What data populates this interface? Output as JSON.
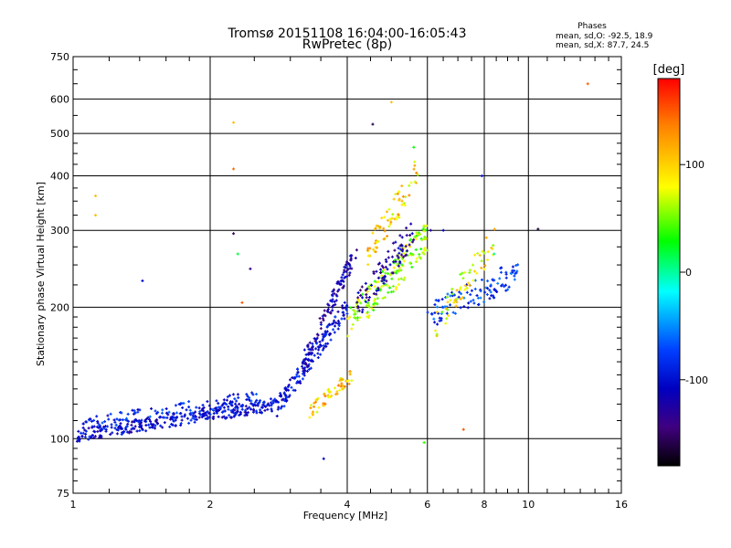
{
  "chart_data": {
    "type": "scatter",
    "title": "Tromsø 20151108 16:04:00-16:05:43",
    "subtitle": "RwPretec (8p)",
    "xlabel": "Frequency [MHz]",
    "ylabel": "Stationary phase Virtual Height [km]",
    "x_scale": "log",
    "y_scale": "log",
    "xlim": [
      1,
      16
    ],
    "ylim": [
      75,
      750
    ],
    "x_ticks": [
      1,
      2,
      4,
      6,
      8,
      10,
      16
    ],
    "y_ticks": [
      75,
      100,
      200,
      300,
      400,
      500,
      600,
      750
    ],
    "grid": true,
    "phase_info": {
      "heading": "Phases",
      "line1": "mean, sd,O: -92.5, 18.9",
      "line2": "mean, sd,X:  87.7, 24.5"
    },
    "colorbar": {
      "label": "[deg]",
      "range": [
        -180,
        180
      ],
      "ticks": [
        100,
        0,
        -100
      ],
      "colors": [
        "#ff0000",
        "#ff8000",
        "#ffff00",
        "#00ff00",
        "#00ffff",
        "#0040ff",
        "#0000c0",
        "#400080",
        "#000000"
      ]
    },
    "series": [
      {
        "type": "traces",
        "traces": [
          {
            "x": [
              1.02,
              2.8
            ],
            "y": [
              102,
              120
            ],
            "phase": -95,
            "n": 320,
            "jitter": 0.035
          },
          {
            "x": [
              1.05,
              2.6
            ],
            "y": [
              108,
              125
            ],
            "phase": -80,
            "n": 120,
            "jitter": 0.035
          },
          {
            "x": [
              2.8,
              4.0
            ],
            "y": [
              118,
              200
            ],
            "phase": -90,
            "n": 160,
            "jitter": 0.05
          },
          {
            "x": [
              3.2,
              4.2
            ],
            "y": [
              150,
              270
            ],
            "phase": -115,
            "n": 110,
            "jitter": 0.05
          },
          {
            "x": [
              3.3,
              4.1
            ],
            "y": [
              115,
              140
            ],
            "phase": 95,
            "n": 60,
            "jitter": 0.035
          },
          {
            "x": [
              4.0,
              6.0
            ],
            "y": [
              180,
              290
            ],
            "phase": 60,
            "n": 170,
            "jitter": 0.09
          },
          {
            "x": [
              4.2,
              5.6
            ],
            "y": [
              200,
              300
            ],
            "phase": -120,
            "n": 90,
            "jitter": 0.08
          },
          {
            "x": [
              4.4,
              5.8
            ],
            "y": [
              260,
              420
            ],
            "phase": 90,
            "n": 70,
            "jitter": 0.08
          },
          {
            "x": [
              6.0,
              9.5
            ],
            "y": [
              190,
              240
            ],
            "phase": -70,
            "n": 110,
            "jitter": 0.07
          },
          {
            "x": [
              6.2,
              8.5
            ],
            "y": [
              180,
              290
            ],
            "phase": 80,
            "n": 60,
            "jitter": 0.08
          }
        ]
      },
      {
        "type": "points",
        "points": [
          {
            "x": 1.12,
            "y": 360,
            "phase": 100
          },
          {
            "x": 1.12,
            "y": 325,
            "phase": 100
          },
          {
            "x": 1.42,
            "y": 230,
            "phase": -95
          },
          {
            "x": 2.25,
            "y": 530,
            "phase": 100
          },
          {
            "x": 2.25,
            "y": 415,
            "phase": 130
          },
          {
            "x": 2.25,
            "y": 295,
            "phase": -150
          },
          {
            "x": 2.45,
            "y": 245,
            "phase": -130
          },
          {
            "x": 2.3,
            "y": 265,
            "phase": 20
          },
          {
            "x": 2.35,
            "y": 205,
            "phase": 140
          },
          {
            "x": 4.55,
            "y": 525,
            "phase": -160
          },
          {
            "x": 5.0,
            "y": 590,
            "phase": 100
          },
          {
            "x": 5.6,
            "y": 465,
            "phase": 30
          },
          {
            "x": 7.9,
            "y": 400,
            "phase": -95
          },
          {
            "x": 10.5,
            "y": 302,
            "phase": -160
          },
          {
            "x": 13.5,
            "y": 650,
            "phase": 135
          },
          {
            "x": 3.55,
            "y": 90,
            "phase": -100
          },
          {
            "x": 7.2,
            "y": 105,
            "phase": 140
          },
          {
            "x": 5.9,
            "y": 98,
            "phase": 40
          },
          {
            "x": 6.1,
            "y": 300,
            "phase": -120
          },
          {
            "x": 6.5,
            "y": 300,
            "phase": -100
          },
          {
            "x": 8.4,
            "y": 265,
            "phase": 10
          }
        ]
      }
    ]
  }
}
